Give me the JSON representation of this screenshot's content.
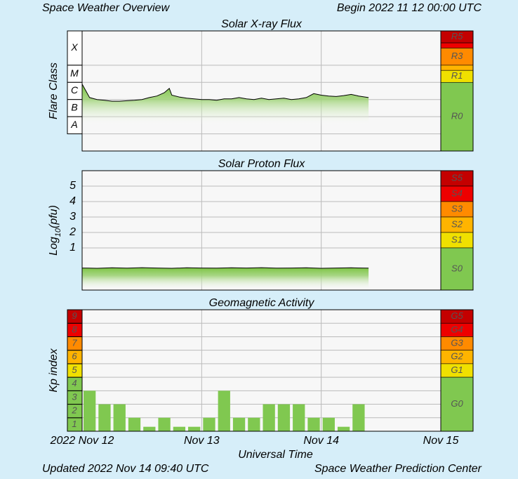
{
  "header": {
    "title": "Space Weather Overview",
    "begin": "Begin 2022 11 12 00:00 UTC"
  },
  "footer": {
    "updated": "Updated 2022 Nov 14 09:40 UTC",
    "source": "Space Weather Prediction Center"
  },
  "chart_data": [
    {
      "type": "line",
      "title": "Solar X-ray Flux",
      "ylabel": [
        "Flare Class"
      ],
      "log": true,
      "ylim": [
        1e-09,
        0.01
      ],
      "xlim": [
        0,
        72
      ],
      "yticks": [
        {
          "value": 0.0001,
          "label": "X"
        },
        {
          "value": 1e-05,
          "label": "M"
        },
        {
          "value": 1e-06,
          "label": "C"
        },
        {
          "value": 1e-07,
          "label": "B"
        },
        {
          "value": 1e-08,
          "label": "A"
        }
      ],
      "color": "#000000",
      "fill": "#7cc443",
      "x": [
        0,
        1.5,
        3,
        4.5,
        6,
        7.5,
        9,
        10.5,
        12,
        13.5,
        15,
        16.5,
        17.5,
        18,
        19.5,
        21,
        22.5,
        24,
        25.5,
        27,
        28.5,
        30,
        31.5,
        33,
        34.5,
        36,
        37.5,
        39,
        40.5,
        42,
        43.5,
        45,
        46.5,
        48,
        49.5,
        51,
        52.5,
        54,
        55.5,
        57.5
      ],
      "values": [
        8e-06,
        1.3e-06,
        1e-06,
        9e-07,
        8e-07,
        8e-07,
        8.5e-07,
        9e-07,
        1e-06,
        1.3e-06,
        1.6e-06,
        2.5e-06,
        4.5e-06,
        1.8e-06,
        1.4e-06,
        1.2e-06,
        1.1e-06,
        1e-06,
        1e-06,
        9e-07,
        1.1e-06,
        1.1e-06,
        1.3e-06,
        1.1e-06,
        1e-06,
        1.2e-06,
        1e-06,
        1.1e-06,
        1.2e-06,
        1e-06,
        1.1e-06,
        1.3e-06,
        2.2e-06,
        1.8e-06,
        1.6e-06,
        1.5e-06,
        1.7e-06,
        2e-06,
        1.6e-06,
        1.3e-06
      ],
      "scale": [
        {
          "label": "R5",
          "min": 0.002,
          "color": "#c40000"
        },
        {
          "label": null,
          "min": 0.001,
          "color": "#ee0000"
        },
        {
          "label": "R3",
          "min": 0.0001,
          "color": "#ff8a00"
        },
        {
          "label": null,
          "min": 5e-05,
          "color": "#ffb400"
        },
        {
          "label": "R1",
          "min": 1e-05,
          "color": "#f0e000"
        },
        {
          "label": "R0",
          "min": 1e-09,
          "color": "#80c850"
        }
      ]
    },
    {
      "type": "line",
      "title": "Solar Proton Flux",
      "ylabel": [
        "Log",
        "10",
        "(pfu)"
      ],
      "log": false,
      "ylim": [
        -1.73,
        6
      ],
      "xlim": [
        0,
        72
      ],
      "yticks": [
        1,
        2,
        3,
        4,
        5
      ],
      "color": "#000000",
      "fill": "#7cc443",
      "x": [
        0,
        3,
        6,
        9,
        12,
        15,
        18,
        21,
        24,
        27,
        30,
        33,
        36,
        39,
        42,
        45,
        48,
        51,
        54,
        57.5
      ],
      "values": [
        -0.3,
        -0.32,
        -0.29,
        -0.31,
        -0.28,
        -0.3,
        -0.32,
        -0.29,
        -0.3,
        -0.31,
        -0.29,
        -0.3,
        -0.28,
        -0.31,
        -0.3,
        -0.29,
        -0.32,
        -0.3,
        -0.29,
        -0.31
      ],
      "scale": [
        {
          "label": "S5",
          "min": 5,
          "color": "#c40000"
        },
        {
          "label": "S4",
          "min": 4,
          "color": "#ee0000"
        },
        {
          "label": "S3",
          "min": 3,
          "color": "#ff8a00"
        },
        {
          "label": "S2",
          "min": 2,
          "color": "#ffb400"
        },
        {
          "label": "S1",
          "min": 1,
          "color": "#f0e000"
        },
        {
          "label": "S0",
          "min": -1.73,
          "color": "#80c850"
        }
      ]
    },
    {
      "type": "histogram",
      "title": "Geomagnetic Activity",
      "ylabel": [
        "Kp index"
      ],
      "log": false,
      "ylim": [
        0,
        9
      ],
      "xlim": [
        0,
        72
      ],
      "yticks": [
        1,
        2,
        3,
        4,
        5,
        6,
        7,
        8,
        9
      ],
      "ytick_colors": [
        "#80c850",
        "#80c850",
        "#80c850",
        "#80c850",
        "#f0e000",
        "#ffb400",
        "#ff8a00",
        "#ee0000",
        "#c40000"
      ],
      "xticks": [
        {
          "value": 0,
          "label": "2022 Nov 12"
        },
        {
          "value": 24,
          "label": "Nov 13"
        },
        {
          "value": 48,
          "label": "Nov 14"
        },
        {
          "value": 72,
          "label": "Nov 15"
        }
      ],
      "xlabel": "Universal Time",
      "color": "#80c850",
      "bins": [
        0,
        3,
        6,
        9,
        12,
        15,
        18,
        21,
        24,
        27,
        30,
        33,
        36,
        39,
        42,
        45,
        48,
        51,
        54,
        57
      ],
      "values": [
        3,
        2,
        2,
        1,
        0.33,
        1,
        0.33,
        0.33,
        1,
        3,
        1,
        1,
        2,
        2,
        2,
        1,
        1,
        0.33,
        2
      ],
      "scale": [
        {
          "label": "G5",
          "min": 8,
          "color": "#c40000"
        },
        {
          "label": "G4",
          "min": 7,
          "color": "#ee0000"
        },
        {
          "label": "G3",
          "min": 6,
          "color": "#ff8a00"
        },
        {
          "label": "G2",
          "min": 5,
          "color": "#ffb400"
        },
        {
          "label": "G1",
          "min": 4,
          "color": "#f0e000"
        },
        {
          "label": "G0",
          "min": 0,
          "color": "#80c850"
        }
      ]
    }
  ]
}
